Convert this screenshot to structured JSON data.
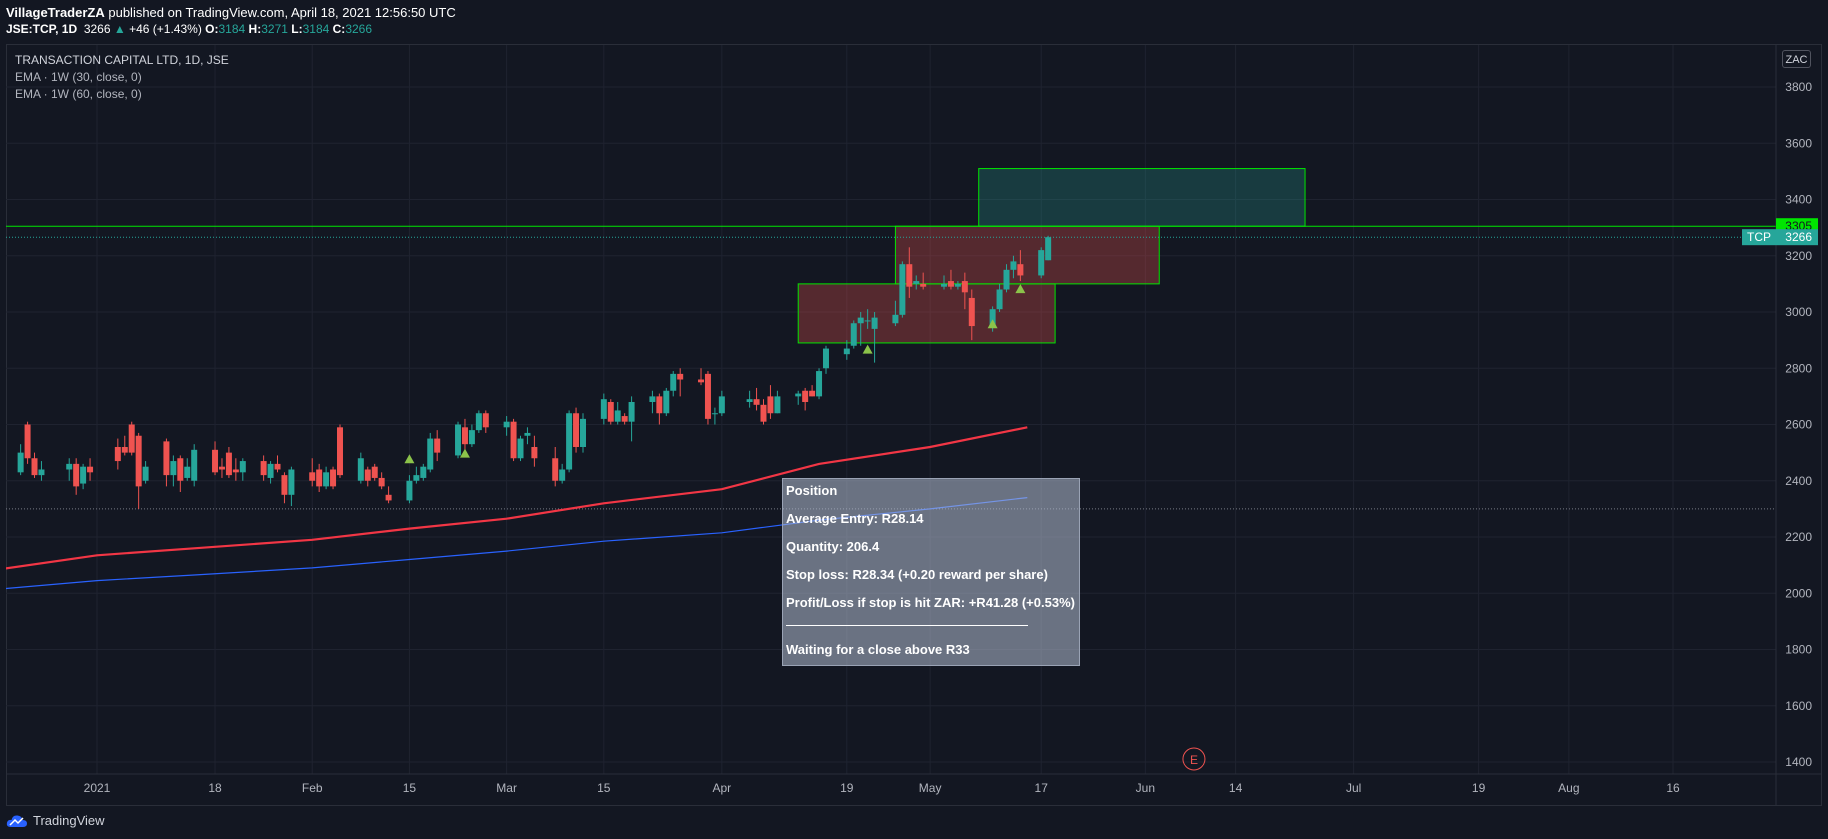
{
  "header": {
    "author": "VillageTraderZA",
    "published_text": " published on TradingView.com, April 18, 2021 12:56:50 UTC",
    "symbol": "JSE:TCP, 1D",
    "last": "3266",
    "change": "+46 (+1.43%)",
    "o_label": "O:",
    "o_value": "3184",
    "h_label": "H:",
    "h_value": "3271",
    "l_label": "L:",
    "l_value": "3184",
    "c_label": "C:",
    "c_value": "3266"
  },
  "legend": {
    "title": "TRANSACTION CAPITAL LTD, 1D, JSE",
    "ema1": "EMA · 1W (30, close, 0)",
    "ema2": "EMA · 1W (60, close, 0)"
  },
  "currency_badge": "ZAC",
  "price_tags": {
    "level": "3305",
    "symbol_tag": "TCP",
    "symbol_price": "3266"
  },
  "footer": {
    "brand": "TradingView"
  },
  "note": {
    "title": "Position",
    "line1": "Average Entry: R28.14",
    "line2": "Quantity: 206.4",
    "line3": "Stop loss: R28.34 (+0.20 reward per share)",
    "line4": "Profit/Loss if stop is hit ZAR: +R41.28 (+0.53%)",
    "line5": "Waiting for a close above R33"
  },
  "earnings_marker": "E",
  "colors": {
    "up": "#26a69a",
    "down": "#ef5350",
    "ema30": "#f23645",
    "ema60": "#2962ff",
    "zone_stroke": "#00e600",
    "level_tag": "#00e600",
    "background": "#131722",
    "grid": "#1f2330"
  },
  "chart_data": {
    "type": "candlestick",
    "y_ticks": [
      1400,
      1600,
      1800,
      2000,
      2200,
      2400,
      2600,
      2800,
      3000,
      3200,
      3400,
      3600,
      3800
    ],
    "ylim": [
      1330,
      3880
    ],
    "x_ticks": [
      {
        "label": "2021",
        "date": "2021-01-01"
      },
      {
        "label": "18",
        "date": "2021-01-18"
      },
      {
        "label": "Feb",
        "date": "2021-02-01"
      },
      {
        "label": "15",
        "date": "2021-02-15"
      },
      {
        "label": "Mar",
        "date": "2021-03-01"
      },
      {
        "label": "15",
        "date": "2021-03-15"
      },
      {
        "label": "Apr",
        "date": "2021-04-01"
      },
      {
        "label": "19",
        "date": "2021-04-19"
      },
      {
        "label": "May",
        "date": "2021-05-01"
      },
      {
        "label": "17",
        "date": "2021-05-17"
      },
      {
        "label": "Jun",
        "date": "2021-06-01"
      },
      {
        "label": "14",
        "date": "2021-06-14"
      },
      {
        "label": "Jul",
        "date": "2021-07-01"
      },
      {
        "label": "19",
        "date": "2021-07-19"
      },
      {
        "label": "Aug",
        "date": "2021-08-01"
      },
      {
        "label": "16",
        "date": "2021-08-16"
      }
    ],
    "candles": [
      [
        "2020-12-18",
        2450,
        2480,
        2400,
        2430
      ],
      [
        "2020-12-21",
        2430,
        2530,
        2420,
        2500
      ],
      [
        "2020-12-22",
        2600,
        2610,
        2460,
        2480
      ],
      [
        "2020-12-23",
        2480,
        2500,
        2410,
        2420
      ],
      [
        "2020-12-24",
        2420,
        2470,
        2400,
        2440
      ],
      [
        "2020-12-28",
        2440,
        2480,
        2400,
        2460
      ],
      [
        "2020-12-29",
        2460,
        2480,
        2350,
        2380
      ],
      [
        "2020-12-30",
        2390,
        2460,
        2370,
        2450
      ],
      [
        "2020-12-31",
        2450,
        2480,
        2400,
        2430
      ],
      [
        "2021-01-04",
        2520,
        2550,
        2440,
        2470
      ],
      [
        "2021-01-05",
        2520,
        2560,
        2490,
        2500
      ],
      [
        "2021-01-06",
        2600,
        2610,
        2490,
        2500
      ],
      [
        "2021-01-07",
        2560,
        2570,
        2300,
        2380
      ],
      [
        "2021-01-08",
        2400,
        2470,
        2390,
        2450
      ],
      [
        "2021-01-11",
        2540,
        2550,
        2380,
        2420
      ],
      [
        "2021-01-12",
        2420,
        2490,
        2380,
        2470
      ],
      [
        "2021-01-13",
        2480,
        2490,
        2360,
        2400
      ],
      [
        "2021-01-14",
        2410,
        2480,
        2400,
        2450
      ],
      [
        "2021-01-15",
        2400,
        2530,
        2380,
        2510
      ],
      [
        "2021-01-18",
        2510,
        2540,
        2420,
        2430
      ],
      [
        "2021-01-19",
        2450,
        2480,
        2410,
        2440
      ],
      [
        "2021-01-20",
        2500,
        2520,
        2410,
        2420
      ],
      [
        "2021-01-21",
        2440,
        2480,
        2400,
        2430
      ],
      [
        "2021-01-22",
        2430,
        2480,
        2400,
        2470
      ],
      [
        "2021-01-25",
        2470,
        2490,
        2400,
        2420
      ],
      [
        "2021-01-26",
        2410,
        2470,
        2390,
        2460
      ],
      [
        "2021-01-27",
        2460,
        2490,
        2430,
        2440
      ],
      [
        "2021-01-28",
        2420,
        2430,
        2320,
        2350
      ],
      [
        "2021-01-29",
        2350,
        2450,
        2310,
        2440
      ],
      [
        "2021-02-01",
        2430,
        2480,
        2380,
        2400
      ],
      [
        "2021-02-02",
        2440,
        2460,
        2360,
        2380
      ],
      [
        "2021-02-03",
        2380,
        2450,
        2370,
        2430
      ],
      [
        "2021-02-04",
        2440,
        2450,
        2370,
        2380
      ],
      [
        "2021-02-05",
        2590,
        2600,
        2410,
        2420
      ],
      [
        "2021-02-08",
        2400,
        2500,
        2390,
        2480
      ],
      [
        "2021-02-09",
        2440,
        2450,
        2380,
        2400
      ],
      [
        "2021-02-10",
        2450,
        2460,
        2400,
        2410
      ],
      [
        "2021-02-11",
        2410,
        2430,
        2370,
        2380
      ],
      [
        "2021-02-12",
        2350,
        2380,
        2320,
        2330
      ],
      [
        "2021-02-15",
        2330,
        2420,
        2320,
        2400
      ],
      [
        "2021-02-16",
        2400,
        2450,
        2390,
        2420
      ],
      [
        "2021-02-17",
        2410,
        2460,
        2400,
        2450
      ],
      [
        "2021-02-18",
        2440,
        2570,
        2430,
        2550
      ],
      [
        "2021-02-19",
        2550,
        2580,
        2470,
        2500
      ],
      [
        "2021-02-22",
        2490,
        2610,
        2480,
        2600
      ],
      [
        "2021-02-23",
        2590,
        2620,
        2510,
        2530
      ],
      [
        "2021-02-24",
        2530,
        2600,
        2520,
        2580
      ],
      [
        "2021-02-25",
        2580,
        2650,
        2570,
        2640
      ],
      [
        "2021-02-26",
        2640,
        2650,
        2570,
        2590
      ],
      [
        "2021-03-01",
        2590,
        2630,
        2560,
        2610
      ],
      [
        "2021-03-02",
        2610,
        2620,
        2470,
        2480
      ],
      [
        "2021-03-03",
        2480,
        2560,
        2470,
        2550
      ],
      [
        "2021-03-04",
        2560,
        2590,
        2530,
        2570
      ],
      [
        "2021-03-05",
        2520,
        2560,
        2450,
        2480
      ],
      [
        "2021-03-08",
        2480,
        2520,
        2380,
        2400
      ],
      [
        "2021-03-09",
        2400,
        2460,
        2390,
        2440
      ],
      [
        "2021-03-10",
        2440,
        2650,
        2430,
        2640
      ],
      [
        "2021-03-11",
        2640,
        2660,
        2500,
        2520
      ],
      [
        "2021-03-12",
        2520,
        2640,
        2500,
        2620
      ],
      [
        "2021-03-15",
        2620,
        2710,
        2600,
        2690
      ],
      [
        "2021-03-16",
        2680,
        2690,
        2600,
        2610
      ],
      [
        "2021-03-17",
        2610,
        2680,
        2600,
        2650
      ],
      [
        "2021-03-18",
        2630,
        2640,
        2600,
        2610
      ],
      [
        "2021-03-19",
        2610,
        2700,
        2540,
        2680
      ],
      [
        "2021-03-22",
        2680,
        2720,
        2640,
        2700
      ],
      [
        "2021-03-23",
        2700,
        2710,
        2600,
        2640
      ],
      [
        "2021-03-24",
        2640,
        2730,
        2630,
        2720
      ],
      [
        "2021-03-25",
        2720,
        2790,
        2700,
        2780
      ],
      [
        "2021-03-26",
        2780,
        2800,
        2700,
        2760
      ],
      [
        "2021-03-29",
        2760,
        2800,
        2740,
        2750
      ],
      [
        "2021-03-30",
        2780,
        2790,
        2600,
        2620
      ],
      [
        "2021-03-31",
        2640,
        2660,
        2600,
        2640
      ],
      [
        "2021-04-01",
        2640,
        2720,
        2630,
        2700
      ],
      [
        "2021-04-05",
        2680,
        2720,
        2660,
        2690
      ],
      [
        "2021-04-06",
        2690,
        2730,
        2650,
        2670
      ],
      [
        "2021-04-07",
        2670,
        2690,
        2600,
        2610
      ],
      [
        "2021-04-08",
        2700,
        2740,
        2620,
        2640
      ],
      [
        "2021-04-09",
        2640,
        2720,
        2640,
        2700
      ],
      [
        "2021-04-12",
        2700,
        2720,
        2670,
        2710
      ],
      [
        "2021-04-13",
        2720,
        2730,
        2650,
        2680
      ],
      [
        "2021-04-14",
        2720,
        2740,
        2700,
        2700
      ],
      [
        "2021-04-15",
        2700,
        2800,
        2690,
        2790
      ],
      [
        "2021-04-16",
        2800,
        2880,
        2780,
        2870
      ],
      [
        "2021-04-19",
        2850,
        2900,
        2830,
        2870
      ],
      [
        "2021-04-20",
        2880,
        2970,
        2870,
        2960
      ],
      [
        "2021-04-21",
        2960,
        3000,
        2880,
        2980
      ],
      [
        "2021-04-22",
        2970,
        3010,
        2940,
        2970
      ],
      [
        "2021-04-23",
        2940,
        3000,
        2820,
        2980
      ],
      [
        "2021-04-26",
        2960,
        3040,
        2950,
        2990
      ],
      [
        "2021-04-27",
        2990,
        3180,
        2980,
        3170
      ],
      [
        "2021-04-28",
        3170,
        3230,
        3050,
        3090
      ],
      [
        "2021-04-29",
        3100,
        3130,
        3080,
        3110
      ],
      [
        "2021-04-30",
        3100,
        3140,
        3080,
        3090
      ],
      [
        "2021-05-03",
        3090,
        3130,
        3080,
        3100
      ],
      [
        "2021-05-04",
        3110,
        3150,
        3080,
        3090
      ],
      [
        "2021-05-05",
        3090,
        3110,
        3080,
        3100
      ],
      [
        "2021-05-06",
        3110,
        3140,
        3010,
        3070
      ],
      [
        "2021-05-07",
        3050,
        3080,
        2900,
        2950
      ],
      [
        "2021-05-10",
        2950,
        3020,
        2930,
        3010
      ],
      [
        "2021-05-11",
        3010,
        3100,
        3000,
        3080
      ],
      [
        "2021-05-12",
        3080,
        3170,
        3070,
        3150
      ],
      [
        "2021-05-13",
        3150,
        3200,
        3120,
        3180
      ],
      [
        "2021-05-14",
        3170,
        3220,
        3110,
        3130
      ],
      [
        "2021-05-17",
        3130,
        3230,
        3120,
        3220
      ],
      [
        "2021-05-18",
        3184,
        3271,
        3184,
        3266
      ]
    ],
    "ema30": [
      [
        "2020-12-18",
        2085
      ],
      [
        "2021-01-01",
        2135
      ],
      [
        "2021-01-15",
        2160
      ],
      [
        "2021-02-01",
        2190
      ],
      [
        "2021-02-15",
        2230
      ],
      [
        "2021-03-01",
        2265
      ],
      [
        "2021-03-15",
        2320
      ],
      [
        "2021-04-01",
        2370
      ],
      [
        "2021-04-15",
        2460
      ],
      [
        "2021-05-01",
        2520
      ],
      [
        "2021-05-15",
        2590
      ]
    ],
    "ema60": [
      [
        "2020-12-18",
        2015
      ],
      [
        "2021-01-01",
        2045
      ],
      [
        "2021-01-15",
        2065
      ],
      [
        "2021-02-01",
        2090
      ],
      [
        "2021-02-15",
        2120
      ],
      [
        "2021-03-01",
        2150
      ],
      [
        "2021-03-15",
        2185
      ],
      [
        "2021-04-01",
        2215
      ],
      [
        "2021-04-15",
        2260
      ],
      [
        "2021-05-01",
        2300
      ],
      [
        "2021-05-15",
        2340
      ]
    ],
    "signals": [
      {
        "date": "2021-02-15",
        "price": 2480
      },
      {
        "date": "2021-02-23",
        "price": 2500
      },
      {
        "date": "2021-04-22",
        "price": 2870
      },
      {
        "date": "2021-05-10",
        "price": 2960
      },
      {
        "date": "2021-05-14",
        "price": 3085
      }
    ],
    "zones": [
      {
        "from": "2021-04-12",
        "to": "2021-05-19",
        "low": 2890,
        "high": 3100,
        "kind": "loss"
      },
      {
        "from": "2021-04-26",
        "to": "2021-06-03",
        "low": 3100,
        "high": 3305,
        "kind": "loss"
      },
      {
        "from": "2021-05-08",
        "to": "2021-06-24",
        "low": 3305,
        "high": 3510,
        "kind": "profit"
      }
    ],
    "level_line": 3305,
    "last_price_line": 3266,
    "low_dotted_line": 2300,
    "earnings_date": "2021-06-08"
  }
}
